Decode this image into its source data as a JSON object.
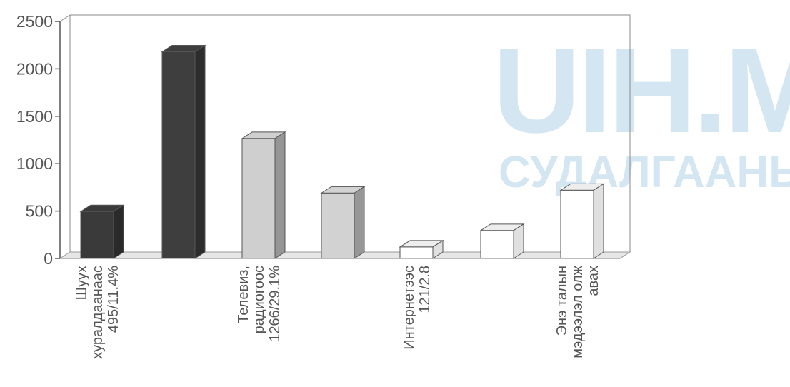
{
  "watermark": {
    "line1": "UIH.MN",
    "line2": "СУДАЛГААНЫ САН"
  },
  "chart_data": {
    "type": "bar",
    "title": "",
    "xlabel": "",
    "ylabel": "",
    "ylim": [
      0,
      2500
    ],
    "yticks": [
      "0",
      "500",
      "1000",
      "1500",
      "2000",
      "2500"
    ],
    "categories": [
      "Шуух хуралдаанаас 495/11.4%",
      "",
      "Телевиз, радиогоос 1266/29.1%",
      "",
      "Интернетээс 121/2.8",
      "",
      "Энэ талын мэдээлэл олж авах"
    ],
    "category_labels": [
      [
        "Шуух",
        "хуралдаанаас",
        "495/11.4%"
      ],
      [],
      [
        "Телевиз,",
        "радиогоос",
        "1266/29.1%"
      ],
      [],
      [
        "Интернетээс",
        "121/2.8"
      ],
      [],
      [
        "Энэ талын",
        "мэдээлэл олж",
        "авах"
      ]
    ],
    "values": [
      495,
      2180,
      1266,
      690,
      121,
      295,
      720
    ],
    "bar_colors": [
      "#3a3a3a",
      "#3e3e3e",
      "#cfcfcf",
      "#d2d2d2",
      "#ffffff",
      "#ffffff",
      "#ffffff"
    ],
    "grid": false,
    "legend": "none"
  }
}
